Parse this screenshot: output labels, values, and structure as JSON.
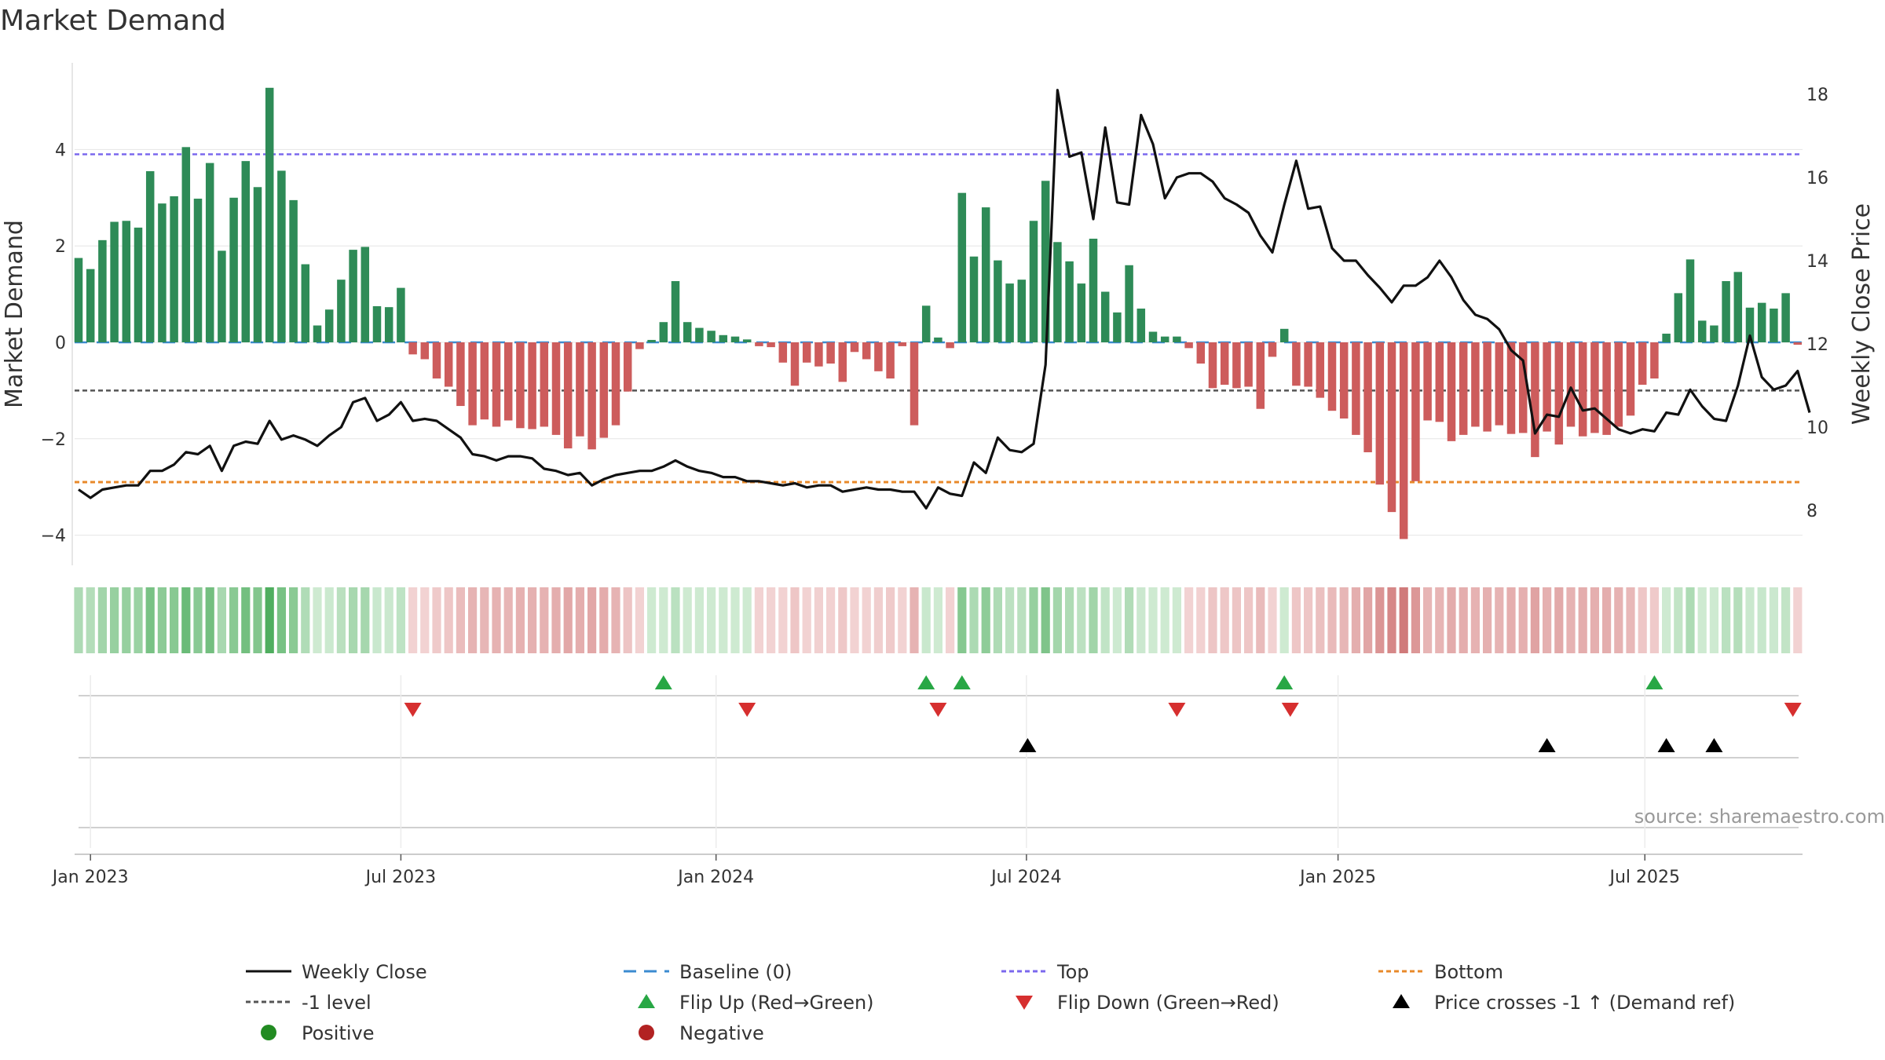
{
  "chart_data": {
    "type": "bar",
    "title": "Market Demand",
    "ylabel_left": "Market Demand",
    "ylabel_right": "Weekly Close Price",
    "source": "source: sharemaestro.com",
    "ylim_left": [
      -4.5,
      5.6
    ],
    "ylim_right": [
      7.0,
      18.3
    ],
    "yticks_left": [
      {
        "v": 4,
        "label": "4"
      },
      {
        "v": 2,
        "label": "2"
      },
      {
        "v": 0,
        "label": "0"
      },
      {
        "v": -2,
        "label": "−2"
      },
      {
        "v": -4,
        "label": "−4"
      }
    ],
    "yticks_right": [
      {
        "v": 18,
        "label": "18"
      },
      {
        "v": 16,
        "label": "16"
      },
      {
        "v": 14,
        "label": "14"
      },
      {
        "v": 12,
        "label": "12"
      },
      {
        "v": 10,
        "label": "10"
      },
      {
        "v": 8,
        "label": "8"
      }
    ],
    "x_ticks": [
      {
        "w": 1,
        "label": "Jan 2023"
      },
      {
        "w": 27,
        "label": "Jul 2023"
      },
      {
        "w": 53.4,
        "label": "Jan 2024"
      },
      {
        "w": 79.4,
        "label": "Jul 2024"
      },
      {
        "w": 105.5,
        "label": "Jan 2025"
      },
      {
        "w": 131.2,
        "label": "Jul 2025"
      }
    ],
    "reference_lines": {
      "top": 3.9,
      "minus_one": -1.0,
      "bottom": -2.9
    },
    "demand": [
      1.75,
      1.52,
      2.12,
      2.5,
      2.52,
      2.38,
      3.55,
      2.88,
      3.03,
      4.05,
      2.98,
      3.72,
      1.9,
      3.0,
      3.76,
      3.22,
      5.28,
      3.56,
      2.95,
      1.62,
      0.35,
      0.68,
      1.3,
      1.92,
      1.98,
      0.75,
      0.73,
      1.13,
      -0.25,
      -0.35,
      -0.75,
      -0.92,
      -1.32,
      -1.72,
      -1.6,
      -1.75,
      -1.62,
      -1.78,
      -1.8,
      -1.75,
      -1.92,
      -2.2,
      -1.95,
      -2.22,
      -1.98,
      -1.72,
      -1.02,
      -0.14,
      0.05,
      0.42,
      1.27,
      0.42,
      0.3,
      0.24,
      0.15,
      0.12,
      0.06,
      -0.08,
      -0.1,
      -0.42,
      -0.9,
      -0.42,
      -0.5,
      -0.44,
      -0.82,
      -0.2,
      -0.35,
      -0.6,
      -0.75,
      -0.08,
      -1.72,
      0.76,
      0.1,
      -0.12,
      3.1,
      1.78,
      2.8,
      1.7,
      1.22,
      1.3,
      2.52,
      3.35,
      2.08,
      1.68,
      1.22,
      2.15,
      1.05,
      0.62,
      1.6,
      0.7,
      0.22,
      0.12,
      0.12,
      -0.12,
      -0.44,
      -0.95,
      -0.88,
      -0.95,
      -0.92,
      -1.38,
      -0.3,
      0.28,
      -0.9,
      -0.92,
      -1.15,
      -1.42,
      -1.58,
      -1.92,
      -2.28,
      -2.95,
      -3.52,
      -4.08,
      -2.88,
      -1.62,
      -1.65,
      -2.05,
      -1.92,
      -1.75,
      -1.85,
      -1.72,
      -1.9,
      -1.88,
      -2.38,
      -1.85,
      -2.12,
      -1.75,
      -1.95,
      -1.88,
      -1.92,
      -1.75,
      -1.52,
      -0.88,
      -0.75,
      0.18,
      1.02,
      1.72,
      0.45,
      0.35,
      1.27,
      1.46,
      0.72,
      0.82,
      0.7,
      1.02,
      -0.05
    ],
    "price": [
      8.5,
      8.3,
      8.5,
      8.55,
      8.6,
      8.6,
      8.95,
      8.95,
      9.1,
      9.4,
      9.35,
      9.55,
      8.95,
      9.55,
      9.65,
      9.6,
      10.15,
      9.7,
      9.8,
      9.7,
      9.55,
      9.8,
      10.0,
      10.6,
      10.7,
      10.15,
      10.3,
      10.6,
      10.15,
      10.2,
      10.15,
      9.95,
      9.75,
      9.35,
      9.3,
      9.2,
      9.3,
      9.3,
      9.25,
      9.0,
      8.95,
      8.85,
      8.9,
      8.6,
      8.75,
      8.85,
      8.9,
      8.95,
      8.95,
      9.05,
      9.2,
      9.05,
      8.95,
      8.9,
      8.8,
      8.8,
      8.7,
      8.7,
      8.65,
      8.6,
      8.65,
      8.55,
      8.6,
      8.6,
      8.45,
      8.5,
      8.55,
      8.5,
      8.5,
      8.45,
      8.45,
      8.05,
      8.55,
      8.4,
      8.35,
      9.15,
      8.9,
      9.75,
      9.45,
      9.4,
      9.6,
      11.5,
      18.1,
      16.5,
      16.6,
      15.0,
      17.2,
      15.4,
      15.35,
      17.5,
      16.8,
      15.5,
      16.0,
      16.1,
      16.1,
      15.9,
      15.5,
      15.35,
      15.15,
      14.6,
      14.2,
      15.35,
      16.4,
      15.25,
      15.3,
      14.3,
      14.0,
      14.0,
      13.65,
      13.35,
      13.0,
      13.4,
      13.4,
      13.6,
      14.0,
      13.6,
      13.05,
      12.7,
      12.6,
      12.35,
      11.85,
      11.6,
      9.85,
      10.3,
      10.25,
      10.95,
      10.4,
      10.45,
      10.2,
      9.95,
      9.85,
      9.95,
      9.9,
      10.35,
      10.3,
      10.9,
      10.5,
      10.2,
      10.15,
      11.0,
      12.2,
      11.2,
      10.9,
      11.0,
      11.35,
      10.35
    ],
    "flip_up_weeks": [
      49,
      71,
      74,
      101,
      132
    ],
    "flip_down_weeks": [
      28,
      56,
      72,
      92,
      101.5,
      143.6
    ],
    "price_cross_weeks": [
      79.5,
      123,
      133,
      137
    ],
    "legend": [
      {
        "label": "Weekly Close",
        "marker": "line-solid"
      },
      {
        "label": "Baseline (0)",
        "marker": "line-dashed-blue"
      },
      {
        "label": "Top",
        "marker": "line-dotted-purple"
      },
      {
        "label": "Bottom",
        "marker": "line-dotted-orange"
      },
      {
        "label": "-1 level",
        "marker": "line-dotted-gray"
      },
      {
        "label": "Flip Up (Red→Green)",
        "marker": "triangle-up-green"
      },
      {
        "label": "Flip Down (Green→Red)",
        "marker": "triangle-down-red"
      },
      {
        "label": "Price crosses -1 ↑ (Demand ref)",
        "marker": "triangle-up-black"
      },
      {
        "label": "Positive",
        "marker": "dot-green"
      },
      {
        "label": "Negative",
        "marker": "dot-red"
      }
    ]
  },
  "colors": {
    "positive": "#2e8b57",
    "negative": "#cd5c5c",
    "price": "#111111",
    "top": "#7b68ee",
    "bottom": "#e8892a",
    "minus_one": "#555555",
    "baseline": "#3b8bd0",
    "flip_up": "#28a745",
    "flip_down": "#d62f2f",
    "cross": "#000000",
    "dot_positive": "#228b22",
    "dot_negative": "#b22222",
    "grid": "#e6e6e6"
  }
}
